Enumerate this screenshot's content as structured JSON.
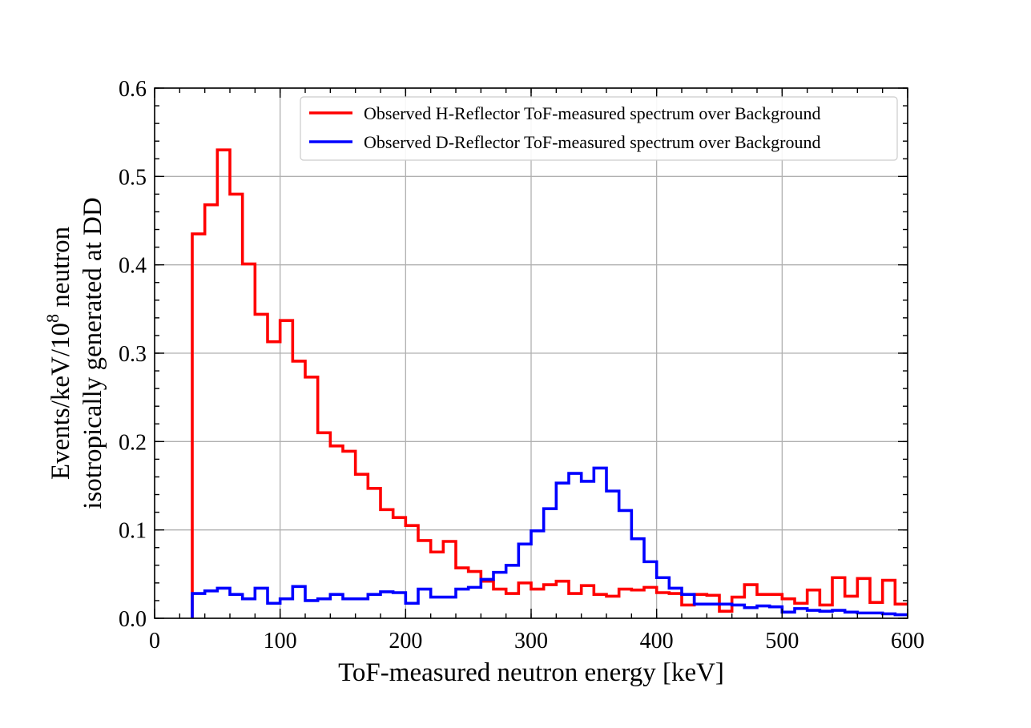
{
  "chart_data": {
    "type": "line",
    "drawstyle": "steps-post",
    "title": "",
    "xlabel": "ToF-measured neutron energy [keV]",
    "ylabel_line1_prefix": "Events/keV/10",
    "ylabel_line1_sup": "8",
    "ylabel_line1_suffix": " neutron",
    "ylabel_line2": "isotropically generated at DD",
    "xlim": [
      0,
      600
    ],
    "ylim": [
      0,
      0.6
    ],
    "xticks": [
      0,
      100,
      200,
      300,
      400,
      500,
      600
    ],
    "xtick_labels": [
      "0",
      "100",
      "200",
      "300",
      "400",
      "500",
      "600"
    ],
    "yticks": [
      0.0,
      0.1,
      0.2,
      0.3,
      0.4,
      0.5,
      0.6
    ],
    "ytick_labels": [
      "0.0",
      "0.1",
      "0.2",
      "0.3",
      "0.4",
      "0.5",
      "0.6"
    ],
    "grid": true,
    "legend_position": "top-right",
    "bin_edges": [
      30,
      40,
      50,
      60,
      70,
      80,
      90,
      100,
      110,
      120,
      130,
      140,
      150,
      160,
      170,
      180,
      190,
      200,
      210,
      220,
      230,
      240,
      250,
      260,
      270,
      280,
      290,
      300,
      310,
      320,
      330,
      340,
      350,
      360,
      370,
      380,
      390,
      400,
      410,
      420,
      430,
      440,
      450,
      460,
      470,
      480,
      490,
      500,
      510,
      520,
      530,
      540,
      550,
      560,
      570,
      580,
      590,
      600
    ],
    "series": [
      {
        "name": "Observed H-Reflector ToF-measured spectrum over Background",
        "color": "#ff0000",
        "values": [
          0.435,
          0.468,
          0.53,
          0.48,
          0.401,
          0.344,
          0.313,
          0.337,
          0.291,
          0.273,
          0.21,
          0.195,
          0.189,
          0.163,
          0.147,
          0.123,
          0.114,
          0.105,
          0.088,
          0.075,
          0.087,
          0.057,
          0.053,
          0.042,
          0.033,
          0.028,
          0.04,
          0.033,
          0.038,
          0.042,
          0.028,
          0.037,
          0.027,
          0.025,
          0.033,
          0.032,
          0.035,
          0.029,
          0.028,
          0.015,
          0.027,
          0.026,
          0.008,
          0.024,
          0.038,
          0.027,
          0.027,
          0.022,
          0.017,
          0.032,
          0.015,
          0.046,
          0.025,
          0.045,
          0.018,
          0.043,
          0.016
        ]
      },
      {
        "name": "Observed D-Reflector ToF-measured spectrum over Background",
        "color": "#0000ff",
        "values": [
          0.028,
          0.031,
          0.034,
          0.027,
          0.022,
          0.034,
          0.017,
          0.022,
          0.036,
          0.02,
          0.022,
          0.027,
          0.022,
          0.022,
          0.027,
          0.03,
          0.029,
          0.017,
          0.033,
          0.024,
          0.024,
          0.033,
          0.035,
          0.044,
          0.052,
          0.06,
          0.084,
          0.099,
          0.124,
          0.153,
          0.164,
          0.155,
          0.17,
          0.144,
          0.122,
          0.09,
          0.064,
          0.046,
          0.034,
          0.027,
          0.016,
          0.016,
          0.016,
          0.015,
          0.012,
          0.014,
          0.013,
          0.007,
          0.011,
          0.009,
          0.008,
          0.009,
          0.007,
          0.006,
          0.006,
          0.005,
          0.004
        ]
      }
    ]
  }
}
